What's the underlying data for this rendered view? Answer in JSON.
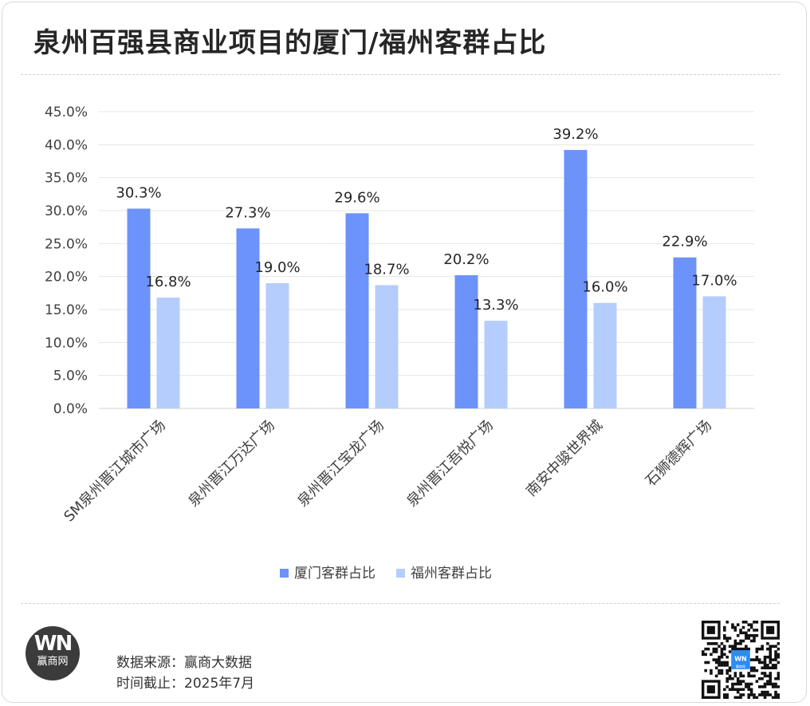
{
  "title": "泉州百强县商业项目的厦门/福州客群占比",
  "colors": {
    "series1": "#6b93fa",
    "series2": "#b4cdfd",
    "grid": "#e6e6e6",
    "text": "#404040"
  },
  "chart_data": {
    "type": "bar",
    "categories": [
      "SM泉州晋江城市广场",
      "泉州晋江万达广场",
      "泉州晋江宝龙广场",
      "泉州晋江吾悦广场",
      "南安中骏世界城",
      "石狮德辉广场"
    ],
    "series": [
      {
        "name": "厦门客群占比",
        "values": [
          30.3,
          27.3,
          29.6,
          20.2,
          39.2,
          22.9
        ]
      },
      {
        "name": "福州客群占比",
        "values": [
          16.8,
          19.0,
          18.7,
          13.3,
          16.0,
          17.0
        ]
      }
    ],
    "ylim": [
      0,
      45
    ],
    "yticks": [
      0,
      5,
      10,
      15,
      20,
      25,
      30,
      35,
      40,
      45
    ],
    "y_format": "percent_1dp",
    "grid": true,
    "legend_position": "bottom"
  },
  "logo": {
    "mark": "WN",
    "name": "赢商网",
    "icon": "winshang-logo-icon"
  },
  "footer": {
    "source": "数据来源：赢商大数据",
    "cutoff": "时间截止：2025年7月"
  },
  "qr": {
    "icon": "qr-code-icon",
    "badge": "WN",
    "badge_text": "赢商网"
  }
}
